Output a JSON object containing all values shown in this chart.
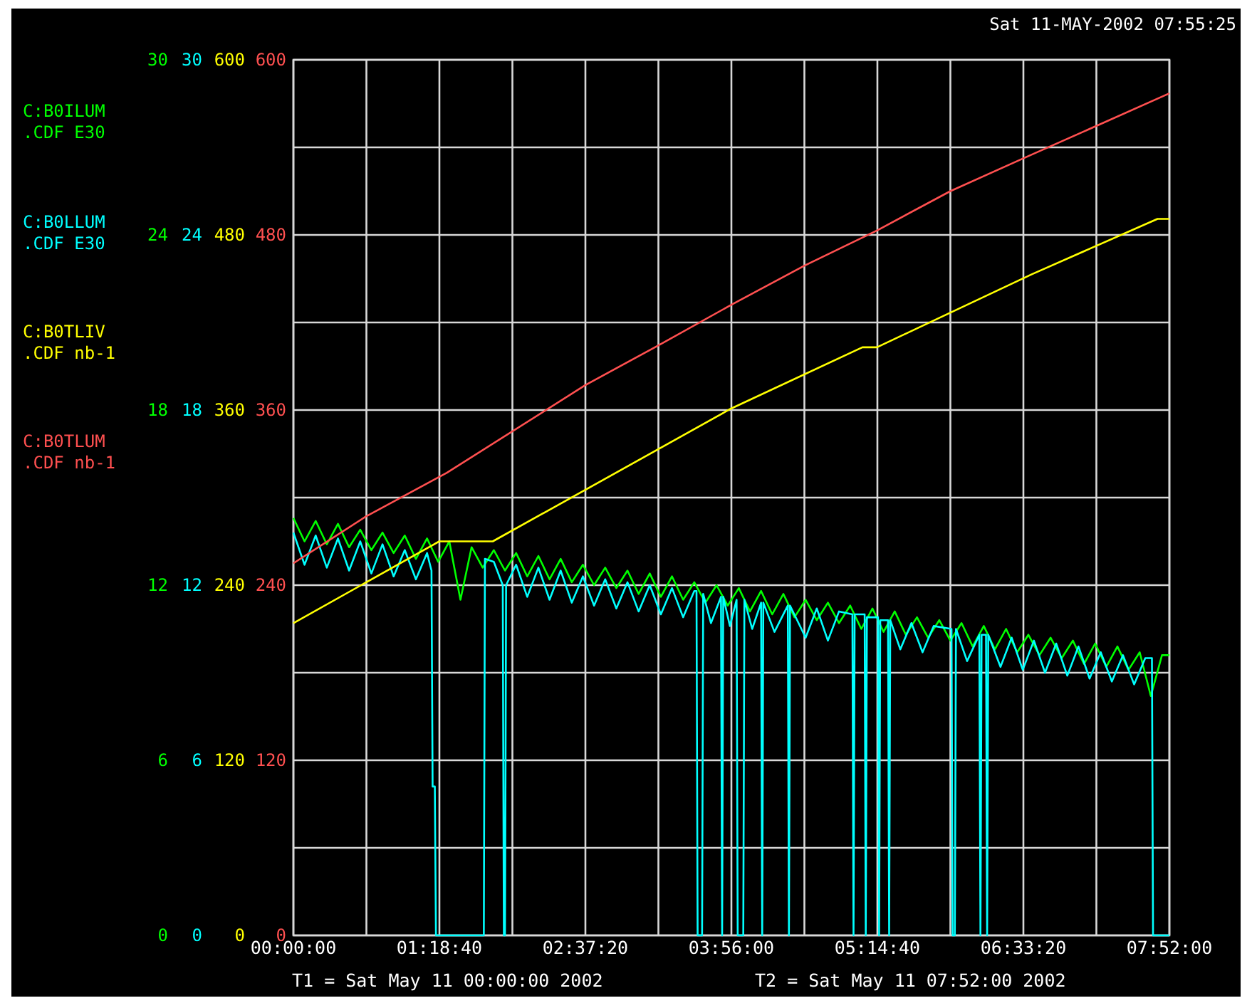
{
  "chart_data": {
    "type": "line",
    "title": "Sat 11-MAY-2002 07:55:25",
    "annotations": [
      "T1 = Sat May 11 00:00:00 2002",
      "T2 = Sat May 11 07:52:00 2002",
      "0",
      "120",
      "240",
      "360",
      "480",
      "600"
    ],
    "xlim": [
      0,
      7.8667
    ],
    "xticks": [
      {
        "value": 0,
        "label": "00:00:00"
      },
      {
        "value": 0.6556,
        "label": null
      },
      {
        "value": 1.3111,
        "label": "01:18:40"
      },
      {
        "value": 1.9667,
        "label": null
      },
      {
        "value": 2.6222,
        "label": "02:37:20"
      },
      {
        "value": 3.2778,
        "label": null
      },
      {
        "value": 3.9333,
        "label": "03:56:00"
      },
      {
        "value": 4.5889,
        "label": null
      },
      {
        "value": 5.2444,
        "label": "05:14:40"
      },
      {
        "value": 5.9,
        "label": null
      },
      {
        "value": 6.5556,
        "label": "06:33:20"
      },
      {
        "value": 7.2111,
        "label": null
      },
      {
        "value": 7.8667,
        "label": "07:52:00"
      }
    ],
    "ylim": [
      0,
      30
    ],
    "yticks": [
      0,
      {
        "value": 3,
        "label": null
      },
      6,
      {
        "value": 9,
        "label": null
      },
      12,
      {
        "value": 15,
        "label": null
      },
      18,
      {
        "value": 21,
        "label": null
      },
      24,
      {
        "value": 27,
        "label": null
      },
      30
    ],
    "y2lim": [
      0,
      30
    ],
    "y2ticks": [
      0,
      6,
      12,
      18,
      24,
      30
    ],
    "y3lim": [
      0,
      600
    ],
    "y3ticks": [
      0,
      120,
      240,
      360,
      480,
      600
    ],
    "grid": true,
    "legend": "left",
    "line_style": "solid",
    "series": [
      {
        "name": "C:B0ILUM .CDF E30",
        "color": "#00ff00",
        "axis": "y",
        "x": [
          0,
          0.1,
          0.2,
          0.3,
          0.4,
          0.5,
          0.6,
          0.7,
          0.8,
          0.9,
          1.0,
          1.1,
          1.2,
          1.3,
          1.4,
          1.5,
          1.6,
          1.7,
          1.8,
          1.9,
          2.0,
          2.1,
          2.2,
          2.3,
          2.4,
          2.5,
          2.6,
          2.7,
          2.8,
          2.9,
          3.0,
          3.1,
          3.2,
          3.3,
          3.4,
          3.5,
          3.6,
          3.7,
          3.8,
          3.9,
          4.0,
          4.1,
          4.2,
          4.3,
          4.4,
          4.5,
          4.6,
          4.7,
          4.8,
          4.9,
          5.0,
          5.1,
          5.2,
          5.3,
          5.4,
          5.5,
          5.6,
          5.7,
          5.8,
          5.9,
          6.0,
          6.1,
          6.2,
          6.3,
          6.4,
          6.5,
          6.6,
          6.7,
          6.8,
          6.9,
          7.0,
          7.1,
          7.2,
          7.3,
          7.4,
          7.5,
          7.6,
          7.7,
          7.8,
          7.8667
        ],
        "values": [
          14.3,
          13.5,
          14.2,
          13.4,
          14.1,
          13.3,
          13.9,
          13.2,
          13.8,
          13.1,
          13.7,
          12.9,
          13.6,
          12.8,
          13.5,
          11.5,
          13.3,
          12.6,
          13.2,
          12.5,
          13.1,
          12.3,
          13.0,
          12.2,
          12.9,
          12.1,
          12.7,
          12.0,
          12.6,
          11.9,
          12.5,
          11.7,
          12.4,
          11.6,
          12.3,
          11.5,
          12.1,
          11.4,
          12.0,
          11.3,
          11.9,
          11.1,
          11.8,
          11.0,
          11.7,
          10.9,
          11.5,
          10.8,
          11.4,
          10.7,
          11.3,
          10.5,
          11.2,
          10.4,
          11.1,
          10.3,
          10.9,
          10.2,
          10.8,
          10.1,
          10.7,
          9.9,
          10.6,
          9.8,
          10.5,
          9.7,
          10.3,
          9.6,
          10.2,
          9.5,
          10.1,
          9.3,
          10.0,
          9.2,
          9.9,
          9.1,
          9.7,
          8.2,
          9.6,
          9.6
        ]
      },
      {
        "name": "C:B0LLUM .CDF E30",
        "color": "#00ffff",
        "axis": "y2",
        "x": [
          0,
          0.1,
          0.2,
          0.3,
          0.4,
          0.5,
          0.6,
          0.7,
          0.8,
          0.9,
          1.0,
          1.1,
          1.2,
          1.24,
          1.25,
          1.27,
          1.28,
          1.71,
          1.72,
          1.8,
          1.88,
          1.89,
          1.9,
          1.91,
          2.0,
          2.1,
          2.2,
          2.3,
          2.4,
          2.5,
          2.6,
          2.7,
          2.8,
          2.9,
          3.0,
          3.1,
          3.2,
          3.3,
          3.4,
          3.5,
          3.6,
          3.62,
          3.63,
          3.67,
          3.68,
          3.75,
          3.84,
          3.85,
          3.86,
          3.92,
          3.98,
          3.99,
          4.04,
          4.05,
          4.12,
          4.2,
          4.21,
          4.22,
          4.32,
          4.44,
          4.45,
          4.46,
          4.6,
          4.7,
          4.8,
          4.9,
          5.02,
          5.03,
          5.04,
          5.13,
          5.14,
          5.15,
          5.25,
          5.26,
          5.27,
          5.34,
          5.35,
          5.36,
          5.45,
          5.55,
          5.65,
          5.75,
          5.91,
          5.92,
          5.94,
          5.95,
          6.05,
          6.16,
          6.17,
          6.18,
          6.22,
          6.23,
          6.24,
          6.35,
          6.45,
          6.55,
          6.65,
          6.75,
          6.85,
          6.95,
          7.05,
          7.15,
          7.25,
          7.35,
          7.45,
          7.55,
          7.65,
          7.71,
          7.72,
          7.8667
        ],
        "values": [
          13.8,
          12.7,
          13.7,
          12.6,
          13.6,
          12.5,
          13.5,
          12.4,
          13.4,
          12.3,
          13.2,
          12.2,
          13.1,
          12.5,
          5.1,
          5.1,
          0,
          0,
          12.9,
          12.8,
          12.0,
          0,
          0,
          12.0,
          12.7,
          11.6,
          12.6,
          11.5,
          12.5,
          11.4,
          12.3,
          11.3,
          12.2,
          11.2,
          12.1,
          11.1,
          12.0,
          11.0,
          11.9,
          10.9,
          11.8,
          11.8,
          0,
          0,
          11.7,
          10.7,
          11.6,
          0,
          11.6,
          10.6,
          11.5,
          0,
          0,
          11.5,
          10.5,
          11.4,
          0,
          11.4,
          10.4,
          11.3,
          0,
          11.3,
          10.2,
          11.2,
          10.1,
          11.1,
          11.0,
          0,
          11.0,
          11.0,
          0,
          10.9,
          10.9,
          0,
          10.8,
          10.8,
          0,
          10.8,
          9.8,
          10.7,
          9.7,
          10.6,
          10.5,
          0,
          0,
          10.5,
          9.4,
          10.3,
          0,
          10.3,
          10.3,
          0,
          10.3,
          9.2,
          10.2,
          9.1,
          10.1,
          9.0,
          10.0,
          8.9,
          9.9,
          8.8,
          9.7,
          8.7,
          9.6,
          8.6,
          9.5,
          9.5,
          0,
          0
        ]
      },
      {
        "name": "C:B0TLIV .CDF nb-1",
        "color": "#ffff00",
        "axis": "y3",
        "x": [
          0,
          1.31,
          1.79,
          3.93,
          5.11,
          5.24,
          6.63,
          7.76,
          7.8667
        ],
        "values": [
          214,
          270,
          270,
          361,
          403,
          403,
          453,
          491,
          491
        ]
      },
      {
        "name": "C:B0TLUM .CDF nb-1",
        "color": "#ff5050",
        "axis": "y3",
        "x": [
          0,
          0.65,
          1.378,
          2.62,
          3.27,
          3.93,
          4.59,
          5.24,
          5.9,
          6.57,
          7.22,
          7.8667
        ],
        "values": [
          255,
          287,
          317,
          377,
          404,
          432,
          459,
          483,
          510,
          533,
          555,
          577
        ]
      }
    ]
  }
}
